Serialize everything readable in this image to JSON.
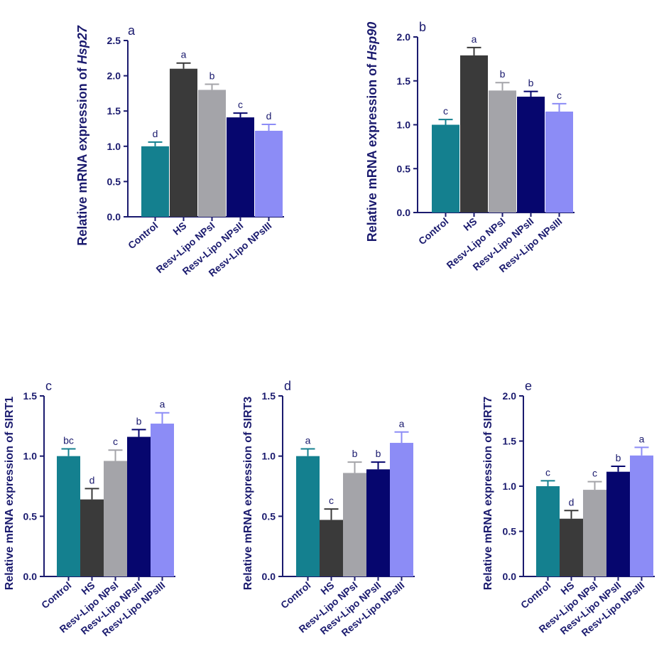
{
  "figure": {
    "categories": [
      "Control",
      "HS",
      "Resv-Lipo NPsI",
      "Resv-Lipo NPsII",
      "Resv-Lipo NPsIII"
    ],
    "colors": {
      "Control": "#14808f",
      "HS": "#3a3a3a",
      "Resv-Lipo NPsI": "#a4a4a9",
      "Resv-Lipo NPsII": "#06066e",
      "Resv-Lipo NPsIII": "#8c8cf6",
      "axis": "#1a1a6e"
    }
  },
  "chart_data": [
    {
      "type": "bar",
      "panel": "a",
      "ylabel_prefix": "Relative mRNA expression of ",
      "ylabel_gene": "Hsp27",
      "ylabel_italic": true,
      "categories": [
        "Control",
        "HS",
        "Resv-Lipo NPsI",
        "Resv-Lipo NPsII",
        "Resv-Lipo NPsIII"
      ],
      "values": [
        1.0,
        2.1,
        1.8,
        1.41,
        1.22
      ],
      "errors": [
        0.06,
        0.08,
        0.08,
        0.06,
        0.09
      ],
      "significance": [
        "d",
        "a",
        "b",
        "c",
        "d"
      ],
      "ylim": [
        0,
        2.5
      ],
      "yticks": [
        0.0,
        0.5,
        1.0,
        1.5,
        2.0,
        2.5
      ],
      "ytick_labels": [
        "0.0",
        "0.5",
        "1.0",
        "1.5",
        "2.0",
        "2.5"
      ]
    },
    {
      "type": "bar",
      "panel": "b",
      "ylabel_prefix": "Relative mRNA expression of ",
      "ylabel_gene": "Hsp90",
      "ylabel_italic": true,
      "categories": [
        "Control",
        "HS",
        "Resv-Lipo NPsI",
        "Resv-Lipo NPsII",
        "Resv-Lipo NPsIII"
      ],
      "values": [
        1.0,
        1.79,
        1.39,
        1.32,
        1.15
      ],
      "errors": [
        0.06,
        0.09,
        0.09,
        0.06,
        0.09
      ],
      "significance": [
        "c",
        "a",
        "b",
        "b",
        "c"
      ],
      "ylim": [
        0,
        2.0
      ],
      "yticks": [
        0.0,
        0.5,
        1.0,
        1.5,
        2.0
      ],
      "ytick_labels": [
        "0.0",
        "0.5",
        "1.0",
        "1.5",
        "2.0"
      ]
    },
    {
      "type": "bar",
      "panel": "c",
      "ylabel_prefix": "Relative mRNA expression of ",
      "ylabel_gene": "SIRT1",
      "ylabel_italic": false,
      "categories": [
        "Control",
        "HS",
        "Resv-Lipo NPsI",
        "Resv-Lipo NPsII",
        "Resv-Lipo NPsIII"
      ],
      "values": [
        1.0,
        0.64,
        0.96,
        1.16,
        1.27
      ],
      "errors": [
        0.06,
        0.09,
        0.09,
        0.06,
        0.09
      ],
      "significance": [
        "bc",
        "d",
        "c",
        "b",
        "a"
      ],
      "ylim": [
        0,
        1.5
      ],
      "yticks": [
        0.0,
        0.5,
        1.0,
        1.5
      ],
      "ytick_labels": [
        "0.0",
        "0.5",
        "1.0",
        "1.5"
      ]
    },
    {
      "type": "bar",
      "panel": "d",
      "ylabel_prefix": "Relative mRNA expression of ",
      "ylabel_gene": "SIRT3",
      "ylabel_italic": false,
      "categories": [
        "Control",
        "HS",
        "Resv-Lipo NPsI",
        "Resv-Lipo NPsII",
        "Resv-Lipo NPsIII"
      ],
      "values": [
        1.0,
        0.47,
        0.86,
        0.89,
        1.11
      ],
      "errors": [
        0.06,
        0.09,
        0.09,
        0.06,
        0.09
      ],
      "significance": [
        "a",
        "c",
        "b",
        "b",
        "a"
      ],
      "ylim": [
        0,
        1.5
      ],
      "yticks": [
        0.0,
        0.5,
        1.0,
        1.5
      ],
      "ytick_labels": [
        "0.0",
        "0.5",
        "1.0",
        "1.5"
      ]
    },
    {
      "type": "bar",
      "panel": "e",
      "ylabel_prefix": "Relative mRNA expression of ",
      "ylabel_gene": "SIRT7",
      "ylabel_italic": false,
      "categories": [
        "Control",
        "HS",
        "Resv-Lipo NPsI",
        "Resv-Lipo NPsII",
        "Resv-Lipo NPsIII"
      ],
      "values": [
        1.0,
        0.64,
        0.96,
        1.16,
        1.34
      ],
      "errors": [
        0.06,
        0.09,
        0.09,
        0.06,
        0.09
      ],
      "significance": [
        "c",
        "d",
        "c",
        "b",
        "a"
      ],
      "ylim": [
        0,
        2.0
      ],
      "yticks": [
        0.0,
        0.5,
        1.0,
        1.5,
        2.0
      ],
      "ytick_labels": [
        "0.0",
        "0.5",
        "1.0",
        "1.5",
        "2.0"
      ]
    }
  ]
}
